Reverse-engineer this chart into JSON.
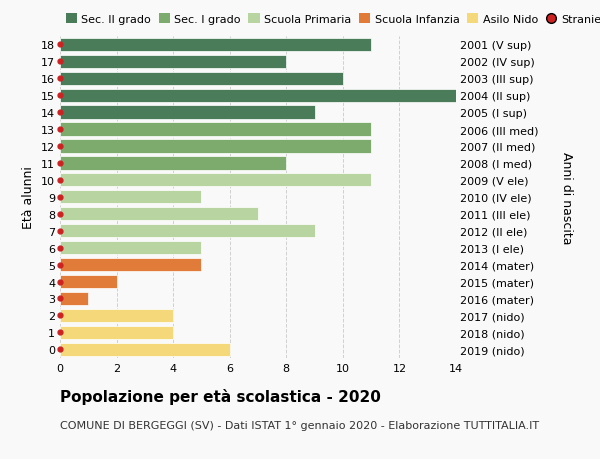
{
  "ages": [
    18,
    17,
    16,
    15,
    14,
    13,
    12,
    11,
    10,
    9,
    8,
    7,
    6,
    5,
    4,
    3,
    2,
    1,
    0
  ],
  "right_labels": [
    "2001 (V sup)",
    "2002 (IV sup)",
    "2003 (III sup)",
    "2004 (II sup)",
    "2005 (I sup)",
    "2006 (III med)",
    "2007 (II med)",
    "2008 (I med)",
    "2009 (V ele)",
    "2010 (IV ele)",
    "2011 (III ele)",
    "2012 (II ele)",
    "2013 (I ele)",
    "2014 (mater)",
    "2015 (mater)",
    "2016 (mater)",
    "2017 (nido)",
    "2018 (nido)",
    "2019 (nido)"
  ],
  "bar_values": [
    11,
    8,
    10,
    14,
    9,
    11,
    11,
    8,
    11,
    5,
    7,
    9,
    5,
    5,
    2,
    1,
    4,
    4,
    6
  ],
  "bar_colors": [
    "#4a7c59",
    "#4a7c59",
    "#4a7c59",
    "#4a7c59",
    "#4a7c59",
    "#7dab6e",
    "#7dab6e",
    "#7dab6e",
    "#b8d4a0",
    "#b8d4a0",
    "#b8d4a0",
    "#b8d4a0",
    "#b8d4a0",
    "#e07b39",
    "#e07b39",
    "#e07b39",
    "#f5d87a",
    "#f5d87a",
    "#f5d87a"
  ],
  "legend_labels": [
    "Sec. II grado",
    "Sec. I grado",
    "Scuola Primaria",
    "Scuola Infanzia",
    "Asilo Nido",
    "Stranieri"
  ],
  "legend_colors": [
    "#4a7c59",
    "#7dab6e",
    "#b8d4a0",
    "#e07b39",
    "#f5d87a",
    "#cc2222"
  ],
  "title": "Popolazione per età scolastica - 2020",
  "subtitle": "COMUNE DI BERGEGGI (SV) - Dati ISTAT 1° gennaio 2020 - Elaborazione TUTTITALIA.IT",
  "ylabel_left": "Età alunni",
  "ylabel_right": "Anni di nascita",
  "xlim": [
    0,
    14
  ],
  "xticks": [
    0,
    2,
    4,
    6,
    8,
    10,
    12,
    14
  ],
  "ylim": [
    -0.5,
    18.5
  ],
  "bg_color": "#f9f9f9",
  "bar_height": 0.78,
  "stranieri_color": "#cc2222",
  "grid_color": "#d0d0d0",
  "title_fontsize": 11,
  "subtitle_fontsize": 8,
  "tick_fontsize": 8,
  "legend_fontsize": 8
}
